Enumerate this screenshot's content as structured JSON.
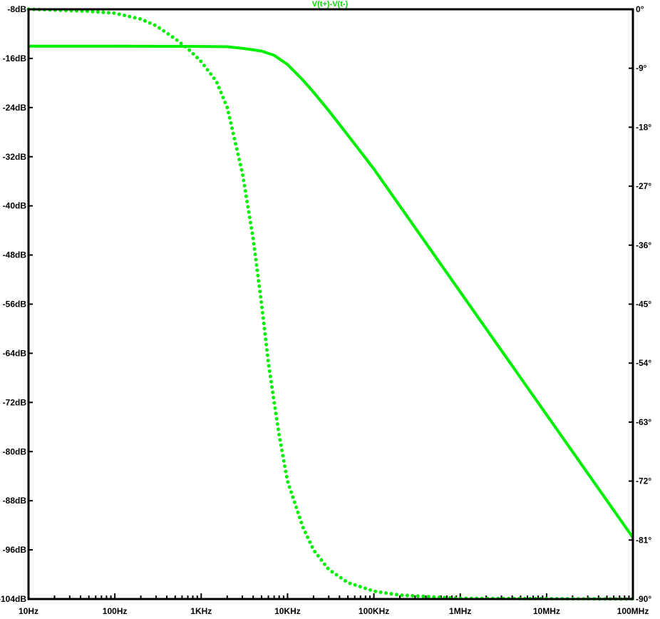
{
  "chart_data": {
    "type": "line",
    "title": "V(t+)-V(t-)",
    "x_scale": "log",
    "x_range": [
      10,
      100000000
    ],
    "x_ticks": [
      {
        "value": 10,
        "label": "10Hz"
      },
      {
        "value": 100,
        "label": "100Hz"
      },
      {
        "value": 1000,
        "label": "1KHz"
      },
      {
        "value": 10000,
        "label": "10KHz"
      },
      {
        "value": 100000,
        "label": "100KHz"
      },
      {
        "value": 1000000,
        "label": "1MHz"
      },
      {
        "value": 10000000,
        "label": "10MHz"
      },
      {
        "value": 100000000,
        "label": "100MHz"
      }
    ],
    "y_left": {
      "range": [
        -104,
        -8
      ],
      "ticks": [
        {
          "value": -8,
          "label": "-8dB"
        },
        {
          "value": -16,
          "label": "-16dB"
        },
        {
          "value": -24,
          "label": "-24dB"
        },
        {
          "value": -32,
          "label": "-32dB"
        },
        {
          "value": -40,
          "label": "-40dB"
        },
        {
          "value": -48,
          "label": "-48dB"
        },
        {
          "value": -56,
          "label": "-56dB"
        },
        {
          "value": -64,
          "label": "-64dB"
        },
        {
          "value": -72,
          "label": "-72dB"
        },
        {
          "value": -80,
          "label": "-80dB"
        },
        {
          "value": -88,
          "label": "-88dB"
        },
        {
          "value": -96,
          "label": "-96dB"
        },
        {
          "value": -104,
          "label": "-104dB"
        }
      ]
    },
    "y_right": {
      "range": [
        -90,
        0
      ],
      "ticks": [
        {
          "value": 0,
          "label": "0°"
        },
        {
          "value": -9,
          "label": "-9°"
        },
        {
          "value": -18,
          "label": "-18°"
        },
        {
          "value": -27,
          "label": "-27°"
        },
        {
          "value": -36,
          "label": "-36°"
        },
        {
          "value": -45,
          "label": "-45°"
        },
        {
          "value": -54,
          "label": "-54°"
        },
        {
          "value": -63,
          "label": "-63°"
        },
        {
          "value": -72,
          "label": "-72°"
        },
        {
          "value": -81,
          "label": "-81°"
        },
        {
          "value": -90,
          "label": "-90°"
        }
      ]
    },
    "series": [
      {
        "kind": "magnitude",
        "axis": "left",
        "style": "solid",
        "color": "#00ee00",
        "points": [
          [
            10,
            -14.0
          ],
          [
            100,
            -14.0
          ],
          [
            1000,
            -14.05
          ],
          [
            2000,
            -14.1
          ],
          [
            3000,
            -14.35
          ],
          [
            5000,
            -14.8
          ],
          [
            7000,
            -15.5
          ],
          [
            10000,
            -17.0
          ],
          [
            15000,
            -19.5
          ],
          [
            20000,
            -21.5
          ],
          [
            30000,
            -24.5
          ],
          [
            50000,
            -28.5
          ],
          [
            100000,
            -34.0
          ],
          [
            1000000,
            -54.0
          ],
          [
            10000000,
            -74.0
          ],
          [
            100000000,
            -94.0
          ]
        ]
      },
      {
        "kind": "phase",
        "axis": "right",
        "style": "dotted",
        "color": "#00ee00",
        "points": [
          [
            10,
            0.0
          ],
          [
            50,
            -0.3
          ],
          [
            100,
            -0.6
          ],
          [
            200,
            -1.5
          ],
          [
            300,
            -2.5
          ],
          [
            500,
            -4.5
          ],
          [
            700,
            -6.0
          ],
          [
            1000,
            -8.0
          ],
          [
            1500,
            -11.0
          ],
          [
            2000,
            -15.0
          ],
          [
            3000,
            -25.0
          ],
          [
            4000,
            -35.0
          ],
          [
            5000,
            -45.0
          ],
          [
            6000,
            -54.0
          ],
          [
            7000,
            -60.0
          ],
          [
            8000,
            -65.0
          ],
          [
            10000,
            -72.0
          ],
          [
            15000,
            -79.0
          ],
          [
            20000,
            -82.5
          ],
          [
            30000,
            -85.5
          ],
          [
            50000,
            -87.5
          ],
          [
            100000,
            -88.8
          ],
          [
            200000,
            -89.4
          ],
          [
            1000000,
            -89.9
          ],
          [
            100000000,
            -90.0
          ]
        ]
      }
    ],
    "grid": false
  }
}
